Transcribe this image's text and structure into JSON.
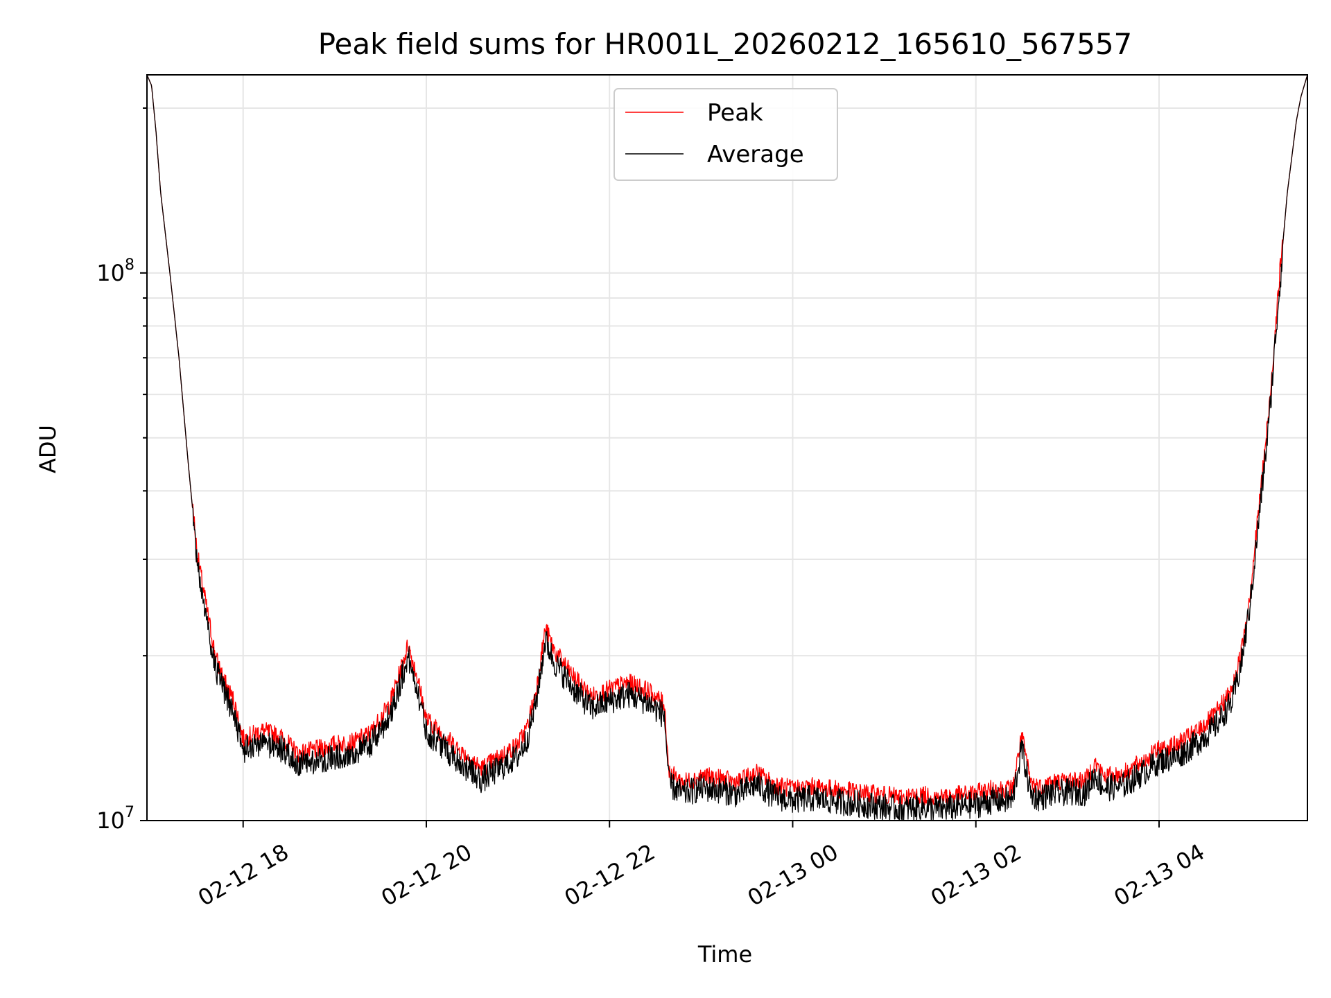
{
  "chart_data": {
    "type": "line",
    "title": "Peak field sums for HR001L_20260212_165610_567557",
    "xlabel": "Time",
    "ylabel": "ADU",
    "yscale": "log",
    "ylim": [
      10000000,
      230000000
    ],
    "xlim_hours": [
      16.95,
      29.62
    ],
    "grid": true,
    "legend_position": "upper center",
    "x_ticks": [
      {
        "hour": 18,
        "label": "02-12 18"
      },
      {
        "hour": 20,
        "label": "02-12 20"
      },
      {
        "hour": 22,
        "label": "02-12 22"
      },
      {
        "hour": 24,
        "label": "02-13 00"
      },
      {
        "hour": 26,
        "label": "02-13 02"
      },
      {
        "hour": 28,
        "label": "02-13 04"
      }
    ],
    "y_major_ticks": [
      {
        "value": 10000000,
        "base": "10",
        "exp": "7"
      },
      {
        "value": 100000000,
        "base": "10",
        "exp": "8"
      }
    ],
    "series": [
      {
        "name": "Peak",
        "color": "#ff0000",
        "jitter": 0.035
      },
      {
        "name": "Average",
        "color": "#000000",
        "jitter": 0.05
      }
    ],
    "profile_hours": [
      16.95,
      17.0,
      17.05,
      17.1,
      17.2,
      17.3,
      17.4,
      17.5,
      17.6,
      17.7,
      17.8,
      17.9,
      18.0,
      18.2,
      18.4,
      18.6,
      18.8,
      19.0,
      19.2,
      19.4,
      19.6,
      19.7,
      19.8,
      19.9,
      20.0,
      20.2,
      20.4,
      20.6,
      20.8,
      21.0,
      21.1,
      21.2,
      21.3,
      21.4,
      21.6,
      21.8,
      22.0,
      22.2,
      22.4,
      22.6,
      22.65,
      22.8,
      23.0,
      23.2,
      23.4,
      23.6,
      23.8,
      24.0,
      24.2,
      24.4,
      24.6,
      24.8,
      25.0,
      25.2,
      25.4,
      25.6,
      25.8,
      26.0,
      26.2,
      26.4,
      26.5,
      26.6,
      26.7,
      26.8,
      27.0,
      27.2,
      27.3,
      27.4,
      27.6,
      27.8,
      28.0,
      28.2,
      28.4,
      28.6,
      28.8,
      28.9,
      29.0,
      29.1,
      29.2,
      29.3,
      29.4,
      29.5,
      29.55,
      29.62
    ],
    "profile_values": [
      230000000,
      220000000,
      180000000,
      140000000,
      100000000,
      70000000,
      45000000,
      30000000,
      24000000,
      19500000,
      17500000,
      16200000,
      13800000,
      14300000,
      14000000,
      13000000,
      13200000,
      13500000,
      13600000,
      14200000,
      16000000,
      18000000,
      20500000,
      18000000,
      15000000,
      14000000,
      13000000,
      12200000,
      12800000,
      13500000,
      14500000,
      17000000,
      22000000,
      20000000,
      18000000,
      16500000,
      17000000,
      17500000,
      17000000,
      16000000,
      12000000,
      11500000,
      11800000,
      11700000,
      11500000,
      12000000,
      11400000,
      11200000,
      11300000,
      11200000,
      11100000,
      11000000,
      10900000,
      10800000,
      10900000,
      10800000,
      10900000,
      11000000,
      11200000,
      11200000,
      14000000,
      11500000,
      11300000,
      11500000,
      11600000,
      11600000,
      12500000,
      11800000,
      11900000,
      12500000,
      13200000,
      13500000,
      14200000,
      15200000,
      17000000,
      20000000,
      26000000,
      38000000,
      55000000,
      90000000,
      140000000,
      190000000,
      210000000,
      230000000
    ]
  }
}
